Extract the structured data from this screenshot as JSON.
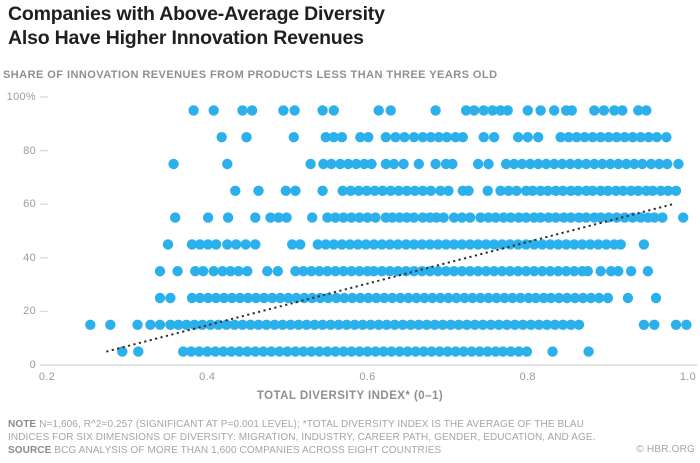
{
  "header": {
    "title_line1": "Companies with Above-Average Diversity",
    "title_line2": "Also Have Higher Innovation Revenues"
  },
  "chart_data": {
    "type": "scatter",
    "title": "Companies with Above-Average Diversity Also Have Higher Innovation Revenues",
    "subtitle": "SHARE OF INNOVATION REVENUES FROM PRODUCTS LESS THAN THREE YEARS OLD",
    "xlabel": "TOTAL DIVERSITY INDEX* (0–1)",
    "ylabel": "",
    "xlim": [
      0.2,
      1.0
    ],
    "ylim": [
      0,
      100
    ],
    "x_ticks": [
      "0.2",
      "0.4",
      "0.6",
      "0.8",
      "1.0"
    ],
    "x_tick_values": [
      0.2,
      0.4,
      0.6,
      0.8,
      1.0
    ],
    "y_ticks": [
      "100%",
      "80",
      "60",
      "40",
      "20",
      "0"
    ],
    "y_tick_values": [
      100,
      80,
      60,
      40,
      20,
      0
    ],
    "grid": "off",
    "legend": "none",
    "point_color": "#2BB0EC",
    "axis_color": "#dcdcdc",
    "trend_line": {
      "style": "dotted",
      "color": "#2f2f2f",
      "x1": 0.274,
      "y1": 5,
      "x2": 0.981,
      "y2": 60
    },
    "bands": [
      {
        "y": 95,
        "x": [
          0.383,
          0.408,
          0.444,
          0.456,
          0.495,
          0.509,
          0.544,
          0.558,
          0.614,
          0.629,
          0.685,
          0.723,
          0.733,
          0.745,
          0.756,
          0.766,
          0.775,
          0.8,
          0.816,
          0.833,
          0.848,
          0.855,
          0.883,
          0.895,
          0.908,
          0.918,
          0.938,
          0.948
        ]
      },
      {
        "y": 85,
        "x": [
          0.418,
          0.449,
          0.508,
          0.548,
          0.558,
          0.568,
          0.591,
          0.601,
          0.623,
          0.635,
          0.646,
          0.658,
          0.669,
          0.679,
          0.689,
          0.699,
          0.71,
          0.719,
          0.745,
          0.758,
          0.788,
          0.8,
          0.813,
          0.841,
          0.851,
          0.861,
          0.871,
          0.881,
          0.891,
          0.901,
          0.911,
          0.921,
          0.931,
          0.941,
          0.951,
          0.961,
          0.973
        ]
      },
      {
        "y": 75,
        "x": [
          0.358,
          0.425,
          0.529,
          0.545,
          0.555,
          0.566,
          0.576,
          0.586,
          0.596,
          0.605,
          0.623,
          0.633,
          0.645,
          0.664,
          0.685,
          0.698,
          0.706,
          0.738,
          0.751,
          0.773,
          0.783,
          0.793,
          0.803,
          0.813,
          0.823,
          0.833,
          0.843,
          0.853,
          0.863,
          0.873,
          0.883,
          0.893,
          0.903,
          0.913,
          0.923,
          0.933,
          0.943,
          0.954,
          0.964,
          0.974,
          0.988
        ]
      },
      {
        "y": 65,
        "x": [
          0.435,
          0.464,
          0.498,
          0.51,
          0.544,
          0.569,
          0.579,
          0.589,
          0.599,
          0.609,
          0.619,
          0.629,
          0.639,
          0.649,
          0.659,
          0.669,
          0.679,
          0.691,
          0.701,
          0.719,
          0.726,
          0.75,
          0.766,
          0.776,
          0.786,
          0.798,
          0.806,
          0.816,
          0.825,
          0.835,
          0.844,
          0.854,
          0.863,
          0.873,
          0.881,
          0.891,
          0.9,
          0.91,
          0.919,
          0.929,
          0.938,
          0.948,
          0.956,
          0.966,
          0.975,
          0.985
        ]
      },
      {
        "y": 55,
        "x": [
          0.36,
          0.401,
          0.426,
          0.46,
          0.479,
          0.489,
          0.499,
          0.531,
          0.55,
          0.56,
          0.57,
          0.58,
          0.59,
          0.6,
          0.61,
          0.623,
          0.631,
          0.64,
          0.649,
          0.658,
          0.669,
          0.678,
          0.686,
          0.695,
          0.708,
          0.718,
          0.728,
          0.741,
          0.751,
          0.76,
          0.77,
          0.779,
          0.789,
          0.798,
          0.808,
          0.816,
          0.826,
          0.835,
          0.845,
          0.854,
          0.864,
          0.873,
          0.883,
          0.891,
          0.901,
          0.911,
          0.921,
          0.931,
          0.941,
          0.95,
          0.958,
          0.968,
          0.994
        ]
      },
      {
        "y": 45,
        "x": [
          0.351,
          0.381,
          0.391,
          0.401,
          0.411,
          0.425,
          0.436,
          0.448,
          0.46,
          0.506,
          0.516,
          0.538,
          0.548,
          0.558,
          0.568,
          0.578,
          0.588,
          0.598,
          0.608,
          0.618,
          0.628,
          0.638,
          0.648,
          0.658,
          0.668,
          0.678,
          0.688,
          0.698,
          0.708,
          0.718,
          0.728,
          0.738,
          0.748,
          0.758,
          0.768,
          0.778,
          0.788,
          0.798,
          0.808,
          0.818,
          0.828,
          0.838,
          0.848,
          0.858,
          0.868,
          0.878,
          0.888,
          0.898,
          0.908,
          0.916,
          0.945
        ]
      },
      {
        "y": 35,
        "x": [
          0.341,
          0.363,
          0.385,
          0.395,
          0.408,
          0.419,
          0.429,
          0.439,
          0.45,
          0.475,
          0.488,
          0.51,
          0.52,
          0.53,
          0.54,
          0.55,
          0.56,
          0.57,
          0.58,
          0.59,
          0.6,
          0.608,
          0.618,
          0.628,
          0.638,
          0.648,
          0.658,
          0.668,
          0.678,
          0.688,
          0.698,
          0.708,
          0.718,
          0.728,
          0.738,
          0.748,
          0.758,
          0.768,
          0.778,
          0.788,
          0.798,
          0.808,
          0.818,
          0.828,
          0.838,
          0.848,
          0.858,
          0.868,
          0.875,
          0.891,
          0.904,
          0.913,
          0.929,
          0.95
        ]
      },
      {
        "y": 25,
        "x": [
          0.341,
          0.354,
          0.381,
          0.391,
          0.401,
          0.411,
          0.421,
          0.431,
          0.441,
          0.451,
          0.461,
          0.471,
          0.481,
          0.491,
          0.501,
          0.511,
          0.521,
          0.531,
          0.541,
          0.551,
          0.561,
          0.571,
          0.581,
          0.591,
          0.601,
          0.611,
          0.621,
          0.631,
          0.641,
          0.651,
          0.661,
          0.671,
          0.681,
          0.691,
          0.701,
          0.711,
          0.721,
          0.731,
          0.741,
          0.751,
          0.761,
          0.771,
          0.781,
          0.791,
          0.801,
          0.81,
          0.82,
          0.829,
          0.839,
          0.849,
          0.859,
          0.869,
          0.879,
          0.889,
          0.9,
          0.925,
          0.96
        ]
      },
      {
        "y": 15,
        "x": [
          0.254,
          0.279,
          0.313,
          0.329,
          0.341,
          0.354,
          0.364,
          0.374,
          0.384,
          0.394,
          0.404,
          0.414,
          0.424,
          0.434,
          0.444,
          0.454,
          0.464,
          0.474,
          0.484,
          0.494,
          0.504,
          0.514,
          0.524,
          0.534,
          0.544,
          0.554,
          0.564,
          0.574,
          0.584,
          0.594,
          0.604,
          0.614,
          0.624,
          0.634,
          0.644,
          0.654,
          0.664,
          0.674,
          0.684,
          0.694,
          0.704,
          0.714,
          0.724,
          0.734,
          0.744,
          0.754,
          0.764,
          0.774,
          0.784,
          0.794,
          0.804,
          0.814,
          0.824,
          0.834,
          0.844,
          0.854,
          0.864,
          0.945,
          0.958,
          0.985,
          0.998
        ]
      },
      {
        "y": 5,
        "x": [
          0.294,
          0.314,
          0.37,
          0.38,
          0.39,
          0.4,
          0.41,
          0.42,
          0.43,
          0.44,
          0.45,
          0.46,
          0.47,
          0.48,
          0.49,
          0.5,
          0.51,
          0.52,
          0.53,
          0.54,
          0.55,
          0.56,
          0.57,
          0.58,
          0.59,
          0.6,
          0.61,
          0.62,
          0.63,
          0.64,
          0.65,
          0.66,
          0.67,
          0.68,
          0.69,
          0.7,
          0.71,
          0.72,
          0.73,
          0.74,
          0.75,
          0.76,
          0.769,
          0.779,
          0.789,
          0.799,
          0.831,
          0.876
        ]
      }
    ]
  },
  "footer": {
    "note_label": "NOTE",
    "note_text": "N=1,606, R^2=0.257 (SIGNIFICANT AT P=0.001 LEVEL); *TOTAL DIVERSITY INDEX IS THE AVERAGE OF THE BLAU INDICES FOR SIX DIMENSIONS OF DIVERSITY: MIGRATION, INDUSTRY, CAREER PATH, GENDER, EDUCATION, AND AGE.",
    "source_label": "SOURCE",
    "source_text": "BCG ANALYSIS OF MORE THAN 1,600 COMPANIES ACROSS EIGHT COUNTRIES",
    "copyright": "© HBR.ORG"
  }
}
